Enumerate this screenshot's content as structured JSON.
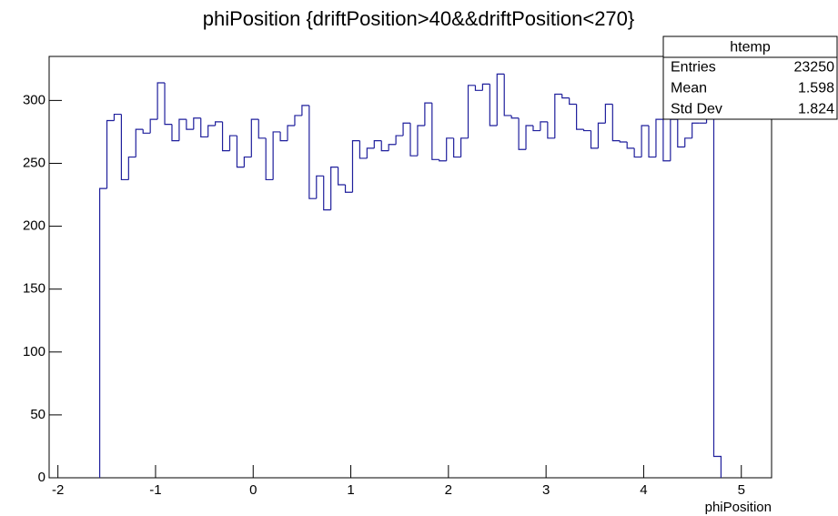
{
  "chart_data": {
    "type": "histogram",
    "title": "phiPosition {driftPosition>40&&driftPosition<270}",
    "x_label": "phiPosition",
    "color": "#1f1f9c",
    "bins": [
      -1.572,
      -1.498,
      -1.424,
      -1.35,
      -1.276,
      -1.202,
      -1.128,
      -1.054,
      -0.98,
      -0.906,
      -0.832,
      -0.758,
      -0.684,
      -0.61,
      -0.536,
      -0.462,
      -0.388,
      -0.314,
      -0.24,
      -0.166,
      -0.092,
      -0.018,
      0.056,
      0.13,
      0.204,
      0.278,
      0.352,
      0.426,
      0.5,
      0.574,
      0.648,
      0.722,
      0.796,
      0.87,
      0.944,
      1.018,
      1.092,
      1.166,
      1.24,
      1.314,
      1.388,
      1.462,
      1.536,
      1.61,
      1.684,
      1.758,
      1.832,
      1.906,
      1.98,
      2.054,
      2.128,
      2.202,
      2.276,
      2.35,
      2.424,
      2.498,
      2.572,
      2.646,
      2.72,
      2.794,
      2.868,
      2.942,
      3.016,
      3.09,
      3.164,
      3.238,
      3.312,
      3.386,
      3.46,
      3.534,
      3.608,
      3.682,
      3.756,
      3.83,
      3.904,
      3.978,
      4.052,
      4.126,
      4.2,
      4.274,
      4.348,
      4.422,
      4.496,
      4.57,
      4.644,
      4.718,
      4.792
    ],
    "values": [
      230,
      284,
      289,
      237,
      255,
      277,
      274,
      285,
      314,
      281,
      268,
      285,
      277,
      286,
      271,
      280,
      283,
      260,
      272,
      247,
      255,
      285,
      270,
      237,
      275,
      268,
      280,
      288,
      296,
      222,
      240,
      213,
      247,
      233,
      227,
      268,
      254,
      262,
      268,
      260,
      265,
      272,
      282,
      256,
      280,
      298,
      253,
      252,
      270,
      255,
      270,
      312,
      308,
      313,
      280,
      321,
      288,
      286,
      261,
      280,
      276,
      283,
      270,
      305,
      302,
      297,
      277,
      276,
      262,
      282,
      297,
      268,
      267,
      262,
      255,
      280,
      255,
      285,
      252,
      285,
      263,
      270,
      282,
      282,
      300,
      17
    ],
    "xlim": [
      -2.09,
      5.31
    ],
    "ylim": [
      0,
      335
    ],
    "xticks": [
      -2,
      -1,
      0,
      1,
      2,
      3,
      4,
      5
    ],
    "yticks": [
      0,
      50,
      100,
      150,
      200,
      250,
      300
    ],
    "stats_box": {
      "title": "htemp",
      "rows": [
        {
          "label": "Entries",
          "value": 23250
        },
        {
          "label": "Mean",
          "value": 1.598
        },
        {
          "label": "Std Dev",
          "value": 1.824
        }
      ]
    }
  }
}
